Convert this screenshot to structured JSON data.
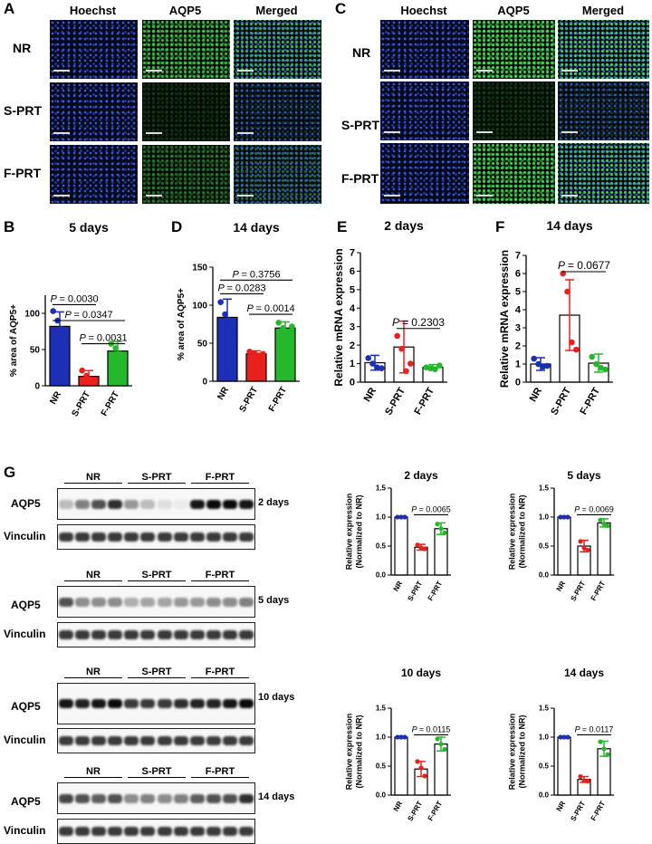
{
  "panels": {
    "A": {
      "label": "A",
      "columns": [
        "Hoechst",
        "AQP5",
        "Merged"
      ],
      "rows": [
        "NR",
        "S-PRT",
        "F-PRT"
      ]
    },
    "C": {
      "label": "C",
      "columns": [
        "Hoechst",
        "AQP5",
        "Merged"
      ],
      "rows": [
        "NR",
        "S-PRT",
        "F-PRT"
      ]
    },
    "G": {
      "label": "G",
      "blots": [
        {
          "day": "2 days",
          "groups": [
            "NR",
            "S-PRT",
            "F-PRT"
          ],
          "rows": [
            "AQP5",
            "Vinculin"
          ]
        },
        {
          "day": "5 days",
          "groups": [
            "NR",
            "S-PRT",
            "F-PRT"
          ],
          "rows": [
            "AQP5",
            "Vinculin"
          ]
        },
        {
          "day": "10 days",
          "groups": [
            "NR",
            "S-PRT",
            "F-PRT"
          ],
          "rows": [
            "AQP5",
            "Vinculin"
          ]
        },
        {
          "day": "14 days",
          "groups": [
            "NR",
            "S-PRT",
            "F-PRT"
          ],
          "rows": [
            "AQP5",
            "Vinculin"
          ]
        }
      ]
    }
  },
  "colors": {
    "NR": "#1c2fb5",
    "S-PRT": "#e8211d",
    "F-PRT": "#25b82a"
  },
  "chart_data": [
    {
      "id": "B",
      "panel_label": "B",
      "type": "bar",
      "title": "5 days",
      "ylabel": "% area of AQP5+",
      "categories": [
        "NR",
        "S-PRT",
        "F-PRT"
      ],
      "values": [
        82,
        13,
        48
      ],
      "sd": [
        20,
        8,
        13
      ],
      "points": [
        [
          103,
          90,
          78,
          70
        ],
        [
          21,
          14,
          9,
          7
        ],
        [
          58,
          52,
          44,
          40
        ]
      ],
      "ylim": [
        0,
        125
      ],
      "yticks": [
        0,
        50,
        100
      ],
      "filled": true,
      "pvalues": [
        {
          "from": 0,
          "to": 1,
          "text": "= 0.0030"
        },
        {
          "from": 0,
          "to": 2,
          "text": "= 0.0347"
        },
        {
          "from": 1,
          "to": 2,
          "text": "= 0.0031"
        }
      ]
    },
    {
      "id": "D",
      "panel_label": "D",
      "type": "bar",
      "title": "14 days",
      "ylabel": "% area of AQP5+",
      "categories": [
        "NR",
        "S-PRT",
        "F-PRT"
      ],
      "values": [
        84,
        36,
        70
      ],
      "sd": [
        24,
        4,
        8
      ],
      "points": [
        [
          104,
          88,
          80,
          62
        ],
        [
          39,
          36,
          34,
          36
        ],
        [
          77,
          70,
          63,
          72
        ]
      ],
      "ylim": [
        0,
        150
      ],
      "yticks": [
        0,
        50,
        100,
        150
      ],
      "filled": true,
      "pvalues": [
        {
          "from": 0,
          "to": 2,
          "text": "= 0.3756"
        },
        {
          "from": 0,
          "to": 1,
          "text": "= 0.0283"
        },
        {
          "from": 1,
          "to": 2,
          "text": "= 0.0014"
        }
      ]
    },
    {
      "id": "E",
      "panel_label": "E",
      "type": "bar",
      "title": "2 days",
      "ylabel": "Relative mRNA expression",
      "categories": [
        "NR",
        "S-PRT",
        "F-PRT"
      ],
      "values": [
        1.05,
        1.9,
        0.8
      ],
      "sd": [
        0.4,
        1.4,
        0.15
      ],
      "points": [
        [
          1.3,
          1.0,
          0.8,
          0.75
        ],
        [
          2.5,
          1.8,
          0.6,
          1.0
        ],
        [
          0.8,
          0.75,
          0.7,
          0.9
        ]
      ],
      "ylim": [
        0,
        7
      ],
      "yticks": [
        0,
        1,
        2,
        3,
        4,
        5,
        6,
        7
      ],
      "filled": false,
      "pvalues": [
        {
          "from": 1,
          "to": 2,
          "text": "= 0.2303"
        }
      ]
    },
    {
      "id": "F",
      "panel_label": "F",
      "type": "bar",
      "title": "14 days",
      "ylabel": "Relative mRNA expression",
      "categories": [
        "NR",
        "S-PRT",
        "F-PRT"
      ],
      "values": [
        1.0,
        3.7,
        1.05
      ],
      "sd": [
        0.35,
        1.95,
        0.5
      ],
      "points": [
        [
          1.3,
          1.0,
          0.85,
          0.9
        ],
        [
          6.0,
          5.0,
          2.2,
          1.8
        ],
        [
          1.4,
          1.0,
          0.8,
          0.7
        ]
      ],
      "ylim": [
        0,
        7
      ],
      "yticks": [
        0,
        1,
        2,
        3,
        4,
        5,
        6,
        7
      ],
      "filled": false,
      "pvalues": [
        {
          "from": 1,
          "to": 2,
          "text": "= 0.0677"
        }
      ]
    },
    {
      "id": "G1",
      "type": "bar",
      "title": "2 days",
      "ylabel": "Relative expression\n(Normalized to NR)",
      "categories": [
        "NR",
        "S-PRT",
        "F-PRT"
      ],
      "values": [
        1.0,
        0.48,
        0.8
      ],
      "sd": [
        0,
        0.05,
        0.1
      ],
      "points": [
        [
          1.0,
          1.0,
          1.0
        ],
        [
          0.52,
          0.47,
          0.45
        ],
        [
          0.88,
          0.8,
          0.73
        ]
      ],
      "ylim": [
        0,
        1.5
      ],
      "yticks": [
        0.0,
        0.5,
        1.0,
        1.5
      ],
      "filled": false,
      "pvalues": [
        {
          "from": 1,
          "to": 2,
          "text": "= 0.0065"
        }
      ]
    },
    {
      "id": "G2",
      "type": "bar",
      "title": "5 days",
      "ylabel": "Relative expression\n(Normalized to NR)",
      "categories": [
        "NR",
        "S-PRT",
        "F-PRT"
      ],
      "values": [
        1.0,
        0.5,
        0.9
      ],
      "sd": [
        0,
        0.1,
        0.07
      ],
      "points": [
        [
          1.0,
          1.0,
          1.0
        ],
        [
          0.58,
          0.47,
          0.43
        ],
        [
          0.95,
          0.88,
          0.85
        ]
      ],
      "ylim": [
        0,
        1.5
      ],
      "yticks": [
        0.0,
        0.5,
        1.0,
        1.5
      ],
      "filled": false,
      "pvalues": [
        {
          "from": 1,
          "to": 2,
          "text": "= 0.0069"
        }
      ]
    },
    {
      "id": "G3",
      "type": "bar",
      "title": "10 days",
      "ylabel": "Relative expression\n(Normalized to NR)",
      "categories": [
        "NR",
        "S-PRT",
        "F-PRT"
      ],
      "values": [
        1.0,
        0.45,
        0.88
      ],
      "sd": [
        0,
        0.13,
        0.12
      ],
      "points": [
        [
          1.0,
          1.0,
          1.0
        ],
        [
          0.58,
          0.47,
          0.33
        ],
        [
          0.97,
          0.88,
          0.79
        ]
      ],
      "ylim": [
        0,
        1.5
      ],
      "yticks": [
        0.0,
        0.5,
        1.0,
        1.5
      ],
      "filled": false,
      "pvalues": [
        {
          "from": 1,
          "to": 2,
          "text": "= 0.0115"
        }
      ]
    },
    {
      "id": "G4",
      "type": "bar",
      "title": "14 days",
      "ylabel": "Relative expression\n(Normalized to NR)",
      "categories": [
        "NR",
        "S-PRT",
        "F-PRT"
      ],
      "values": [
        1.0,
        0.27,
        0.8
      ],
      "sd": [
        0,
        0.05,
        0.13
      ],
      "points": [
        [
          1.0,
          1.0,
          1.0
        ],
        [
          0.32,
          0.25,
          0.24
        ],
        [
          0.92,
          0.8,
          0.7
        ]
      ],
      "ylim": [
        0,
        1.5
      ],
      "yticks": [
        0.0,
        0.5,
        1.0,
        1.5
      ],
      "filled": false,
      "pvalues": [
        {
          "from": 1,
          "to": 2,
          "text": "= 0.0117"
        }
      ]
    }
  ]
}
